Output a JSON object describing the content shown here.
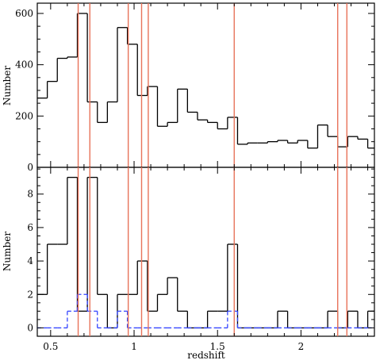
{
  "chart_data": [
    {
      "type": "histogram",
      "panel": "top",
      "xlabel": "",
      "ylabel": "Number",
      "xlim": [
        0.42,
        2.44
      ],
      "ylim": [
        0,
        640
      ],
      "x_ticks": [
        0.5,
        1,
        1.5,
        2
      ],
      "y_ticks": [
        0,
        200,
        400,
        600
      ],
      "y_tick_labels": [
        "0",
        "200",
        "400",
        "600"
      ],
      "series": [
        {
          "style": "solid",
          "color": "#000000",
          "bin_edges": [
            0.42,
            0.48,
            0.54,
            0.6,
            0.66,
            0.72,
            0.78,
            0.84,
            0.9,
            0.96,
            1.02,
            1.08,
            1.14,
            1.2,
            1.26,
            1.32,
            1.38,
            1.44,
            1.5,
            1.56,
            1.62,
            1.68,
            1.74,
            1.8,
            1.86,
            1.92,
            1.98,
            2.04,
            2.1,
            2.16,
            2.22,
            2.28,
            2.34,
            2.4,
            2.44
          ],
          "values": [
            270,
            335,
            425,
            430,
            600,
            255,
            175,
            255,
            545,
            480,
            280,
            315,
            160,
            175,
            305,
            215,
            185,
            175,
            150,
            195,
            90,
            95,
            95,
            100,
            105,
            95,
            105,
            75,
            165,
            120,
            80,
            120,
            110,
            75
          ]
        }
      ],
      "vertical_lines": {
        "color": "#e8735a",
        "x": [
          0.665,
          0.735,
          0.965,
          1.045,
          1.085,
          1.6,
          2.22,
          2.275
        ]
      }
    },
    {
      "type": "histogram",
      "panel": "bottom",
      "xlabel": "redshift",
      "ylabel": "Number",
      "xlim": [
        0.42,
        2.44
      ],
      "ylim": [
        -0.5,
        9.6
      ],
      "x_ticks": [
        0.5,
        1,
        1.5,
        2
      ],
      "x_tick_labels": [
        "0.5",
        "1",
        "1.5",
        "2"
      ],
      "y_ticks": [
        0,
        2,
        4,
        6,
        8
      ],
      "y_tick_labels": [
        "0",
        "2",
        "4",
        "6",
        "8"
      ],
      "series": [
        {
          "style": "solid",
          "color": "#000000",
          "bin_edges": [
            0.42,
            0.48,
            0.54,
            0.6,
            0.66,
            0.72,
            0.78,
            0.84,
            0.9,
            0.96,
            1.02,
            1.08,
            1.14,
            1.2,
            1.26,
            1.32,
            1.38,
            1.44,
            1.5,
            1.56,
            1.62,
            1.68,
            1.74,
            1.8,
            1.86,
            1.92,
            1.98,
            2.04,
            2.1,
            2.16,
            2.22,
            2.28,
            2.34,
            2.4,
            2.44
          ],
          "values": [
            2,
            5,
            5,
            9,
            1,
            9,
            2,
            0,
            2,
            2,
            4,
            1,
            2,
            3,
            1,
            0,
            0,
            1,
            1,
            5,
            0,
            0,
            0,
            0,
            1,
            0,
            0,
            0,
            0,
            1,
            0,
            1,
            0,
            1
          ]
        },
        {
          "style": "dashed",
          "color": "#3344ff",
          "bin_edges": [
            0.42,
            0.48,
            0.54,
            0.6,
            0.66,
            0.72,
            0.78,
            0.84,
            0.9,
            0.96,
            1.02,
            1.08,
            1.14,
            1.2,
            1.26,
            1.32,
            1.38,
            1.44,
            1.5,
            1.56,
            1.62,
            1.68,
            1.74,
            1.8,
            1.86,
            1.92,
            1.98,
            2.04,
            2.1,
            2.16,
            2.22,
            2.28,
            2.34,
            2.4,
            2.44
          ],
          "values": [
            0,
            0,
            0,
            1,
            2,
            1,
            0,
            0,
            1,
            0,
            0,
            0,
            0,
            0,
            0,
            0,
            0,
            0,
            0,
            1,
            0,
            0,
            0,
            0,
            0,
            0,
            0,
            0,
            0,
            0,
            0,
            0,
            0,
            0
          ]
        }
      ],
      "vertical_lines": {
        "color": "#e8735a",
        "x": [
          0.665,
          0.735,
          0.965,
          1.045,
          1.085,
          1.6,
          2.22,
          2.275
        ]
      }
    }
  ]
}
